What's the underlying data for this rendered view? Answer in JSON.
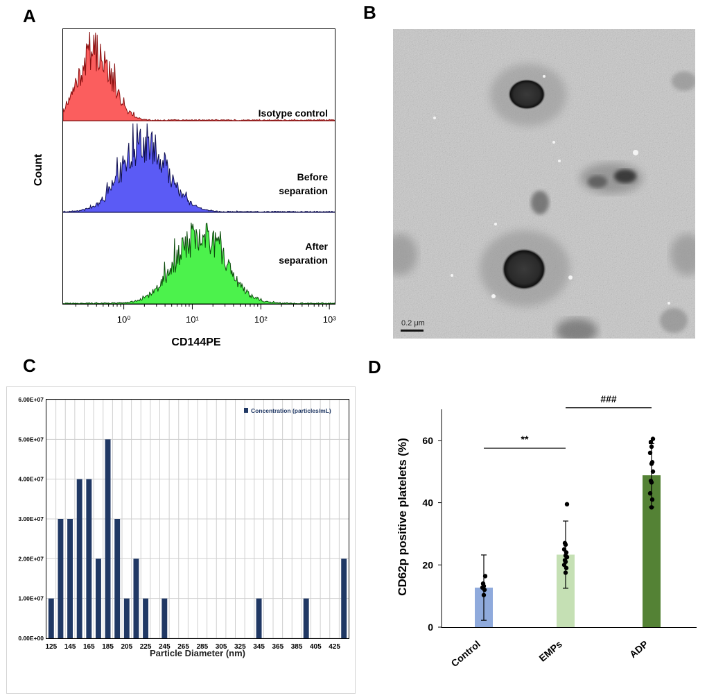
{
  "panels": {
    "a": {
      "letter": "A"
    },
    "b": {
      "letter": "B"
    },
    "c": {
      "letter": "C"
    },
    "d": {
      "letter": "D"
    }
  },
  "chart_data": [
    {
      "id": "A",
      "type": "area",
      "xlabel": "CD144PE",
      "ylabel": "Count",
      "xscale": "log",
      "xlim": [
        0.13,
        1200
      ],
      "xtick_labels": [
        "10⁰",
        "10¹",
        "10²",
        "10³"
      ],
      "xticks": [
        1,
        10,
        100,
        1000
      ],
      "grid": false,
      "series": [
        {
          "label_lines": [
            "Isotype control"
          ],
          "color": "#fb5e5e",
          "line_color": "#8a0f0f",
          "peak_x": 0.38,
          "spread": 0.24,
          "tail_to": 2.5
        },
        {
          "label_lines": [
            "Before",
            "separation"
          ],
          "color": "#5b5bf5",
          "line_color": "#101050",
          "peak_x": 2.0,
          "spread": 0.33,
          "tail_to": 60
        },
        {
          "label_lines": [
            "After",
            "separation"
          ],
          "color": "#4cf24c",
          "line_color": "#0b4a0b",
          "peak_x": 13,
          "spread": 0.36,
          "tail_to": 200
        }
      ]
    },
    {
      "id": "C",
      "type": "bar",
      "xlabel": "Particle Diameter (nm)",
      "ylabel": "",
      "legend": "Concentration (particles/mL)",
      "legend_position": "top-right",
      "grid": true,
      "bar_color": "#203864",
      "ylim": [
        0,
        60000000
      ],
      "ytick_values": [
        0,
        10000000,
        20000000,
        30000000,
        40000000,
        50000000,
        60000000
      ],
      "ytick_labels": [
        "0.00E+00",
        "1.00E+07",
        "2.00E+07",
        "3.00E+07",
        "4.00E+07",
        "5.00E+07",
        "6.00E+07"
      ],
      "xtick_labels": [
        "125",
        "145",
        "165",
        "185",
        "205",
        "225",
        "245",
        "265",
        "285",
        "305",
        "325",
        "345",
        "365",
        "385",
        "405",
        "425"
      ],
      "x": [
        125,
        135,
        145,
        155,
        165,
        175,
        185,
        195,
        205,
        215,
        225,
        235,
        245,
        255,
        265,
        275,
        285,
        295,
        305,
        315,
        325,
        335,
        345,
        355,
        365,
        375,
        385,
        395,
        405,
        415,
        425,
        435
      ],
      "values": [
        10000000,
        30000000,
        30000000,
        40000000,
        40000000,
        20000000,
        50000000,
        30000000,
        10000000,
        20000000,
        10000000,
        0,
        10000000,
        0,
        0,
        0,
        0,
        0,
        0,
        0,
        0,
        0,
        10000000,
        0,
        0,
        0,
        0,
        10000000,
        0,
        0,
        0,
        20000000
      ]
    },
    {
      "id": "D",
      "type": "bar",
      "xlabel": "",
      "ylabel": "CD62p positive platelets (%)",
      "ylim": [
        0,
        70
      ],
      "ytick_values": [
        0,
        20,
        40,
        60
      ],
      "ytick_labels": [
        "0",
        "20",
        "40",
        "60"
      ],
      "categories": [
        "Control",
        "EMPs",
        "ADP"
      ],
      "values": [
        12.7,
        23.3,
        48.8
      ],
      "errors": [
        10.5,
        10.8,
        10.2
      ],
      "colors": [
        "#8faadc",
        "#c5e0b4",
        "#548235"
      ],
      "points": [
        [
          10.3,
          12.0,
          12.7,
          13.2,
          14.0,
          16.4
        ],
        [
          17.5,
          19.0,
          20.0,
          21.0,
          21.5,
          22.5,
          23.0,
          24.0,
          25.0,
          26.5,
          27.0,
          39.5
        ],
        [
          38.5,
          41.0,
          43.0,
          46.5,
          47.0,
          50.0,
          52.5,
          53.0,
          56.0,
          58.0,
          59.5,
          60.5
        ]
      ],
      "significance": [
        {
          "from": "Control",
          "to": "EMPs",
          "label": "**",
          "y": 57.5
        },
        {
          "from": "EMPs",
          "to": "ADP",
          "label": "###",
          "y": 70.5
        }
      ]
    }
  ],
  "image_b": {
    "scale_bar_label": "0.2 μm"
  }
}
